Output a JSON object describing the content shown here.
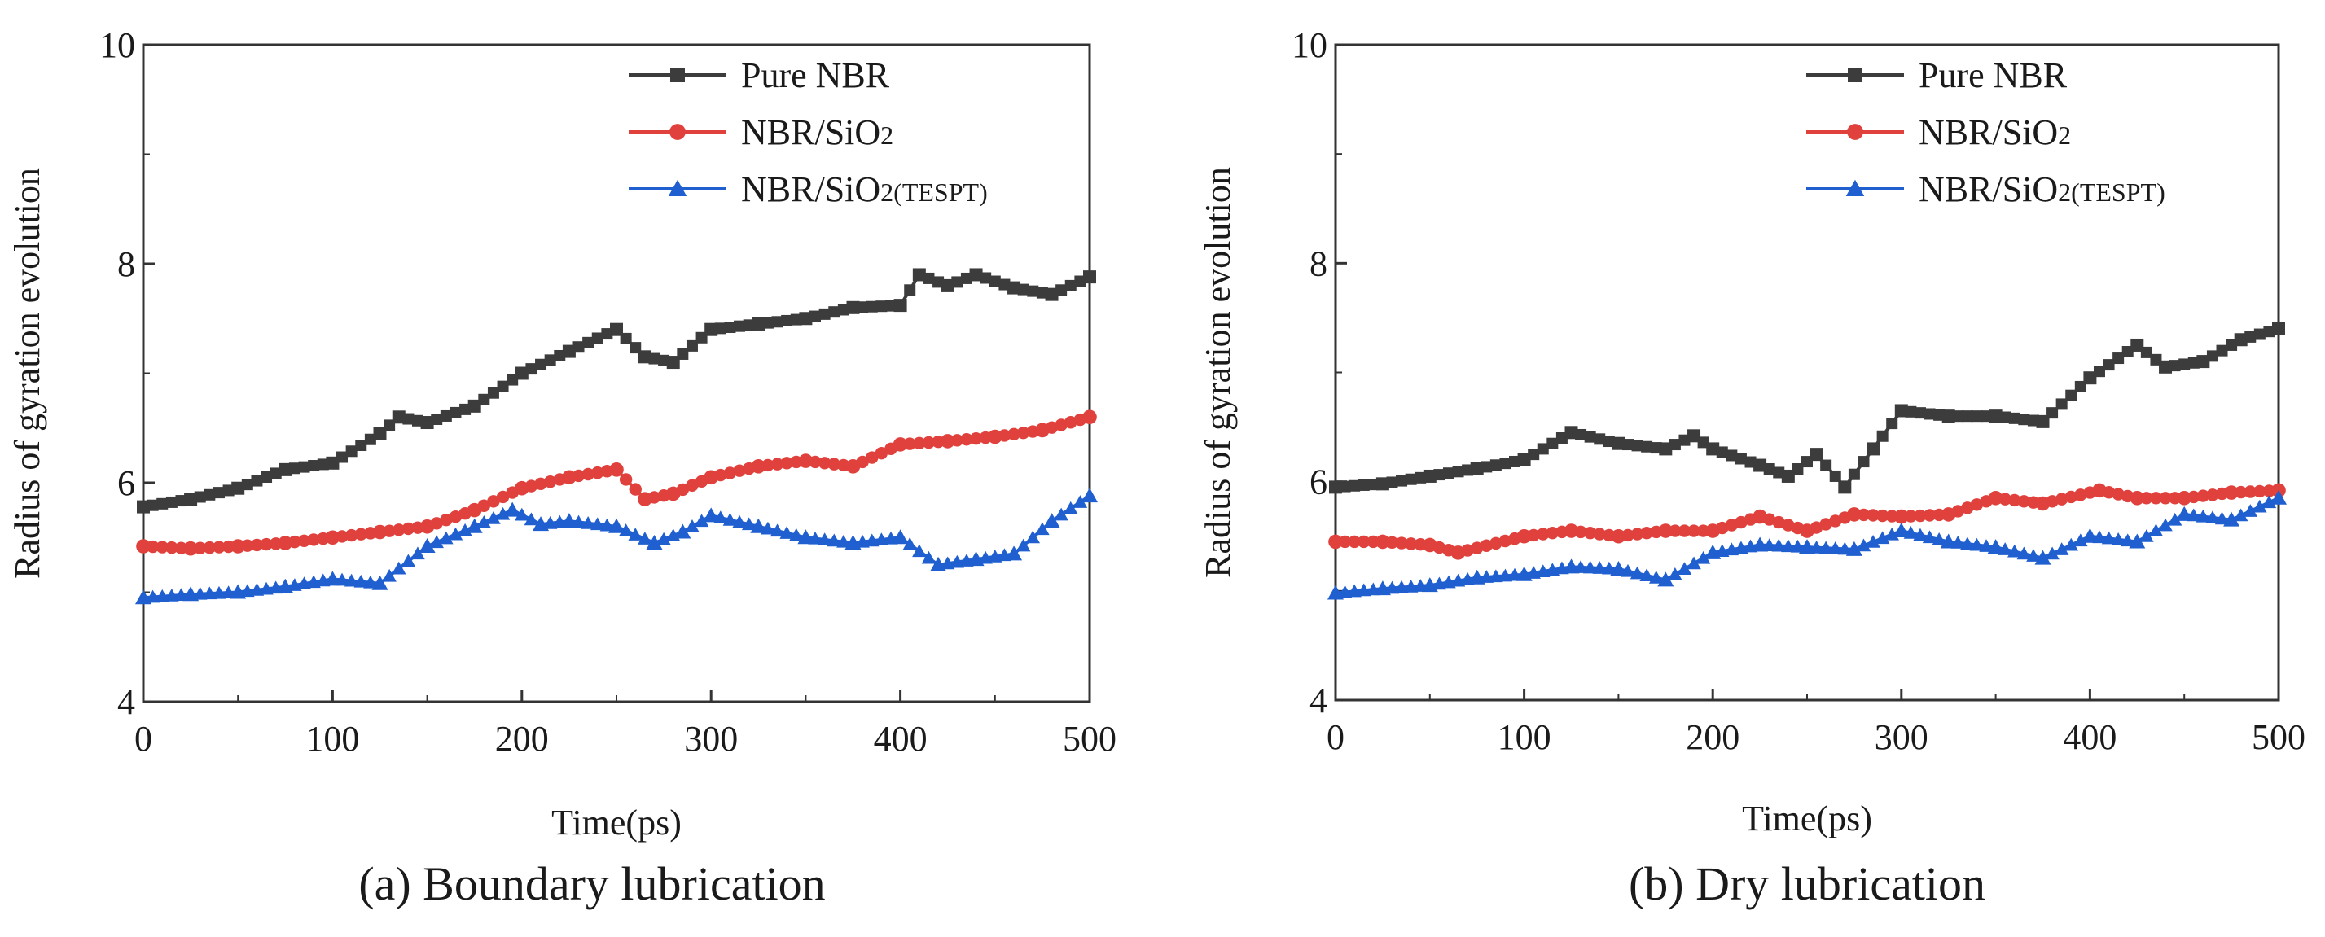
{
  "chart_data": [
    {
      "type": "line",
      "caption": "(a) Boundary lubrication",
      "xlabel": "Time(ps)",
      "ylabel": "Radius of gyration evolution",
      "xlim": [
        0,
        500
      ],
      "ylim": [
        4,
        10
      ],
      "xticks": [
        0,
        100,
        200,
        300,
        400,
        500
      ],
      "yticks": [
        4,
        6,
        8,
        10
      ],
      "grid": false,
      "legend_position": "top-right",
      "series": [
        {
          "name": "Pure NBR",
          "name_main": "Pure NBR",
          "name_sub": "",
          "name_paren": "",
          "color": "#3c3c3c",
          "marker": "square",
          "x": [
            0,
            25,
            50,
            75,
            100,
            125,
            135,
            150,
            175,
            200,
            225,
            250,
            265,
            280,
            300,
            325,
            350,
            375,
            400,
            410,
            425,
            440,
            460,
            480,
            500
          ],
          "y": [
            5.78,
            5.85,
            5.95,
            6.12,
            6.18,
            6.45,
            6.6,
            6.55,
            6.7,
            7.0,
            7.2,
            7.4,
            7.15,
            7.1,
            7.4,
            7.45,
            7.5,
            7.6,
            7.62,
            7.9,
            7.8,
            7.9,
            7.78,
            7.72,
            7.88
          ]
        },
        {
          "name": "NBR/SiO2",
          "name_main": "NBR/SiO",
          "name_sub": "2",
          "name_paren": "",
          "color": "#e0413c",
          "marker": "circle",
          "x": [
            0,
            25,
            50,
            75,
            100,
            125,
            150,
            175,
            200,
            225,
            250,
            265,
            280,
            300,
            325,
            350,
            375,
            400,
            425,
            450,
            475,
            500
          ],
          "y": [
            5.42,
            5.4,
            5.42,
            5.45,
            5.5,
            5.55,
            5.6,
            5.75,
            5.95,
            6.05,
            6.12,
            5.85,
            5.9,
            6.05,
            6.15,
            6.2,
            6.15,
            6.35,
            6.38,
            6.42,
            6.48,
            6.6
          ]
        },
        {
          "name": "NBR/SiO2(TESPT)",
          "name_main": "NBR/SiO",
          "name_sub": "2",
          "name_paren": "(TESPT)",
          "color": "#1f5fd0",
          "marker": "triangle",
          "x": [
            0,
            25,
            50,
            75,
            100,
            125,
            150,
            175,
            195,
            210,
            225,
            250,
            270,
            285,
            300,
            325,
            350,
            375,
            400,
            420,
            440,
            460,
            480,
            500
          ],
          "y": [
            4.95,
            4.98,
            5.0,
            5.05,
            5.12,
            5.08,
            5.42,
            5.6,
            5.75,
            5.62,
            5.65,
            5.6,
            5.45,
            5.55,
            5.7,
            5.6,
            5.5,
            5.45,
            5.5,
            5.25,
            5.3,
            5.35,
            5.65,
            5.88
          ]
        }
      ]
    },
    {
      "type": "line",
      "caption": "(b) Dry lubrication",
      "xlabel": "Time(ps)",
      "ylabel": "Radius of gyration evolution",
      "xlim": [
        0,
        500
      ],
      "ylim": [
        4,
        10
      ],
      "xticks": [
        0,
        100,
        200,
        300,
        400,
        500
      ],
      "yticks": [
        4,
        6,
        8,
        10
      ],
      "grid": false,
      "legend_position": "top-right",
      "series": [
        {
          "name": "Pure NBR",
          "name_main": "Pure NBR",
          "name_sub": "",
          "name_paren": "",
          "color": "#3c3c3c",
          "marker": "square",
          "x": [
            0,
            25,
            50,
            75,
            100,
            125,
            150,
            175,
            190,
            200,
            225,
            240,
            255,
            270,
            285,
            300,
            325,
            350,
            375,
            400,
            425,
            440,
            460,
            480,
            500
          ],
          "y": [
            5.95,
            5.98,
            6.05,
            6.12,
            6.2,
            6.45,
            6.35,
            6.3,
            6.42,
            6.3,
            6.15,
            6.05,
            6.25,
            5.95,
            6.3,
            6.65,
            6.6,
            6.6,
            6.55,
            6.95,
            7.25,
            7.05,
            7.1,
            7.3,
            7.4
          ]
        },
        {
          "name": "NBR/SiO2",
          "name_main": "NBR/SiO",
          "name_sub": "2",
          "name_paren": "",
          "color": "#e0413c",
          "marker": "circle",
          "x": [
            0,
            25,
            50,
            65,
            100,
            125,
            150,
            175,
            200,
            225,
            250,
            275,
            300,
            325,
            350,
            375,
            405,
            425,
            450,
            475,
            500
          ],
          "y": [
            5.45,
            5.45,
            5.42,
            5.35,
            5.5,
            5.55,
            5.5,
            5.55,
            5.55,
            5.68,
            5.55,
            5.7,
            5.68,
            5.7,
            5.85,
            5.8,
            5.92,
            5.85,
            5.85,
            5.9,
            5.92
          ]
        },
        {
          "name": "NBR/SiO2(TESPT)",
          "name_main": "NBR/SiO",
          "name_sub": "2",
          "name_paren": "(TESPT)",
          "color": "#1f5fd0",
          "marker": "triangle",
          "x": [
            0,
            25,
            50,
            75,
            100,
            125,
            150,
            175,
            200,
            225,
            250,
            275,
            300,
            325,
            350,
            375,
            400,
            425,
            450,
            475,
            500
          ],
          "y": [
            4.98,
            5.02,
            5.05,
            5.12,
            5.15,
            5.22,
            5.2,
            5.1,
            5.35,
            5.42,
            5.4,
            5.38,
            5.55,
            5.45,
            5.4,
            5.3,
            5.5,
            5.45,
            5.7,
            5.65,
            5.85
          ]
        }
      ]
    }
  ]
}
